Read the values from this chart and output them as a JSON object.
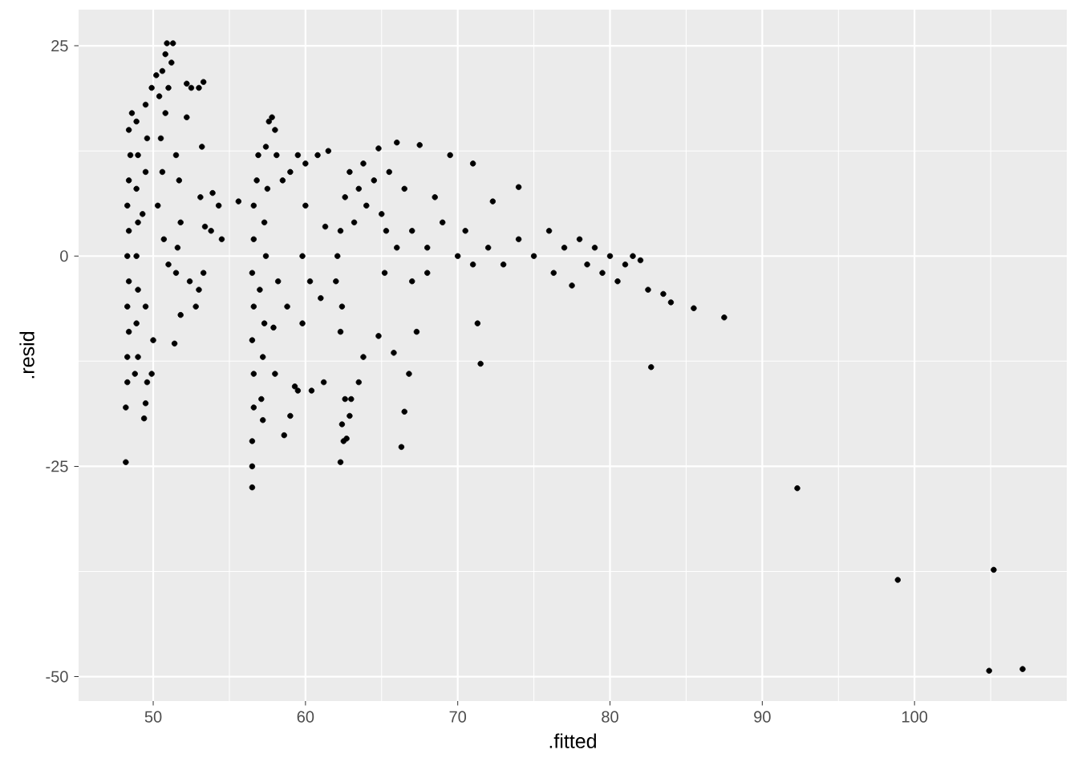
{
  "chart_data": {
    "type": "scatter",
    "xlabel": ".fitted",
    "ylabel": ".resid",
    "xlim": [
      45.1,
      110.0
    ],
    "ylim": [
      -52.9,
      29.3
    ],
    "xticks": [
      50,
      60,
      70,
      80,
      90,
      100
    ],
    "yticks": [
      -50,
      -25,
      0,
      25
    ],
    "grid": true,
    "series": [
      {
        "color": "#000000",
        "x": [
          48.2,
          48.2,
          48.3,
          48.3,
          48.4,
          48.3,
          48.4,
          48.3,
          48.4,
          48.3,
          48.4,
          48.5,
          48.4,
          48.6,
          48.9,
          49.0,
          48.9,
          49.0,
          48.9,
          49.0,
          48.9,
          49.0,
          48.8,
          49.4,
          49.5,
          49.6,
          49.9,
          50.0,
          49.5,
          49.3,
          49.5,
          49.6,
          49.5,
          49.9,
          50.2,
          50.4,
          50.6,
          50.8,
          50.9,
          51.3,
          51.2,
          51.0,
          50.8,
          50.5,
          50.6,
          50.3,
          50.7,
          51.0,
          51.5,
          51.6,
          51.7,
          51.5,
          51.8,
          51.8,
          51.4,
          52.2,
          52.2,
          52.5,
          53.0,
          53.3,
          53.2,
          53.1,
          53.4,
          53.8,
          53.9,
          52.4,
          53.0,
          52.8,
          53.3,
          54.3,
          54.5,
          55.6,
          56.5,
          56.5,
          56.5,
          56.6,
          56.6,
          56.5,
          56.6,
          56.5,
          56.6,
          56.6,
          56.8,
          56.9,
          57.0,
          57.1,
          57.2,
          57.2,
          57.3,
          57.4,
          57.3,
          57.5,
          57.4,
          57.6,
          57.8,
          58.0,
          58.1,
          58.2,
          57.9,
          58.0,
          58.6,
          58.8,
          59.0,
          59.3,
          59.5,
          59.8,
          59.8,
          60.3,
          60.4,
          61.0,
          61.2,
          59.5,
          60.0,
          60.8,
          61.5,
          58.5,
          59.0,
          60.0,
          61.3,
          62.3,
          62.5,
          62.4,
          62.6,
          62.7,
          62.9,
          63.0,
          63.5,
          63.8,
          62.3,
          62.4,
          62.0,
          62.1,
          62.3,
          62.6,
          62.9,
          63.2,
          63.5,
          63.8,
          64.0,
          64.5,
          64.8,
          65.0,
          65.3,
          65.5,
          66.0,
          66.5,
          66.3,
          66.5,
          66.8,
          67.3,
          67.5,
          64.8,
          65.8,
          65.2,
          66.0,
          67.0,
          67.0,
          68.0,
          68.0,
          68.5,
          69.0,
          69.5,
          70.0,
          70.5,
          71.0,
          71.3,
          71.5,
          71.0,
          72.0,
          72.3,
          73.0,
          74.0,
          74.0,
          75.0,
          76.0,
          76.3,
          77.0,
          77.5,
          78.0,
          78.5,
          79.0,
          79.5,
          80.0,
          80.5,
          81.0,
          81.5,
          82.0,
          82.5,
          83.5,
          84.0,
          82.7,
          85.5,
          87.5,
          92.3,
          98.9,
          104.9,
          105.2,
          107.1
        ],
        "values": [
          -24.5,
          -18,
          -15,
          -12,
          -9,
          -6,
          -3,
          0,
          3,
          6,
          9,
          12,
          15,
          17,
          16,
          12,
          8,
          4,
          0,
          -4,
          -8,
          -12,
          -14,
          -19.3,
          -17.5,
          -15,
          -14,
          -10,
          -6,
          5,
          10,
          14,
          18,
          20,
          21.5,
          19,
          22,
          24,
          25.3,
          25.3,
          23,
          20,
          17,
          14,
          10,
          6,
          2,
          -1,
          -2,
          1,
          9,
          12,
          4,
          -7,
          -10.4,
          20.5,
          16.5,
          20,
          20,
          20.7,
          13,
          7,
          3.5,
          3,
          7.5,
          -3,
          -4,
          -6,
          -2,
          6,
          2,
          6.5,
          -27.5,
          -25,
          -22,
          -18,
          -14,
          -10,
          -6,
          -2,
          2,
          6,
          9,
          12,
          -4,
          -17,
          -19.5,
          -12,
          -8,
          0,
          4,
          8,
          13,
          16,
          16.5,
          15,
          12,
          -3,
          -8.5,
          -14,
          -21.3,
          -6,
          -19,
          -15.5,
          -16,
          0,
          -8,
          -3,
          -16,
          -5,
          -15,
          12,
          11,
          12,
          12.5,
          9,
          10,
          6,
          3.5,
          -24.5,
          -22,
          -20,
          -17,
          -21.7,
          -19,
          -17,
          -15,
          -12,
          -9,
          -6,
          -3,
          0,
          3,
          7,
          10,
          4,
          8,
          11,
          6,
          9,
          12.8,
          5,
          3,
          10,
          13.5,
          8,
          -22.7,
          -18.5,
          -14,
          -9,
          13.2,
          -9.5,
          -11.5,
          -2,
          1,
          3,
          -3,
          -2,
          1,
          7,
          4,
          12,
          0,
          3,
          -1,
          -8,
          -12.8,
          11,
          1,
          6.5,
          -1,
          8.2,
          2,
          0,
          3,
          -2,
          1,
          -3.5,
          2,
          -1,
          1,
          -2,
          0,
          -3,
          -1,
          0,
          -0.5,
          -4,
          -4.5,
          -5.5,
          -13.2,
          -6.2,
          -7.3,
          -27.6,
          -38.5,
          -49.3,
          -37.3,
          -49.1
        ]
      }
    ]
  }
}
